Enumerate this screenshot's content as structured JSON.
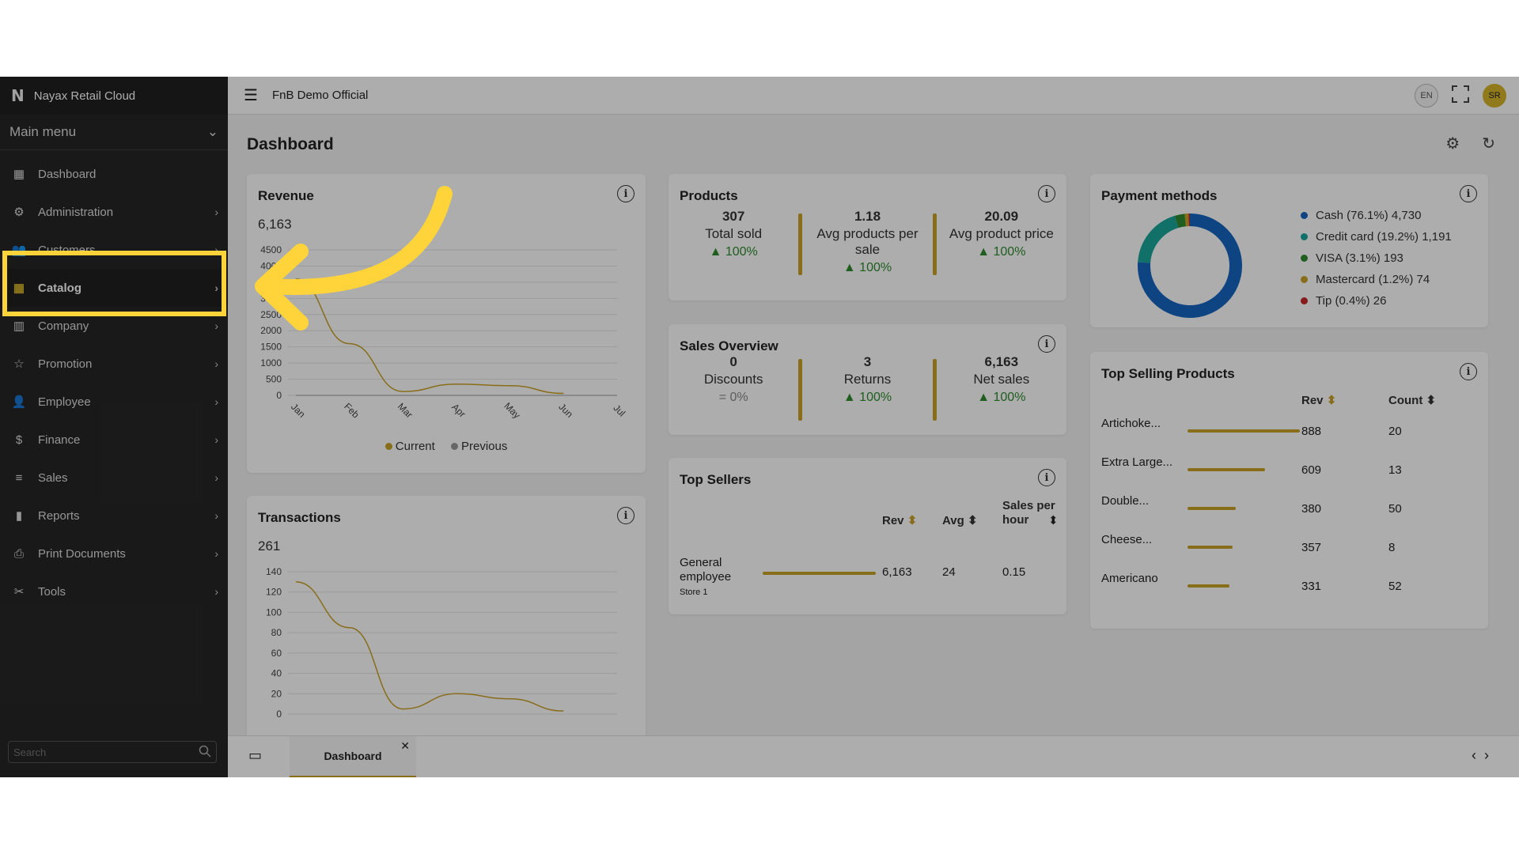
{
  "sidebar": {
    "brand": "Nayax Retail Cloud",
    "main_menu": "Main menu",
    "items": [
      {
        "label": "Dashboard",
        "icon": "dashboard-icon"
      },
      {
        "label": "Administration",
        "icon": "administration-icon"
      },
      {
        "label": "Customers",
        "icon": "customers-icon"
      },
      {
        "label": "Catalog",
        "icon": "catalog-icon"
      },
      {
        "label": "Company",
        "icon": "company-icon"
      },
      {
        "label": "Promotion",
        "icon": "promotion-icon"
      },
      {
        "label": "Employee",
        "icon": "employee-icon"
      },
      {
        "label": "Finance",
        "icon": "finance-icon"
      },
      {
        "label": "Sales",
        "icon": "sales-icon"
      },
      {
        "label": "Reports",
        "icon": "reports-icon"
      },
      {
        "label": "Print Documents",
        "icon": "print-icon"
      },
      {
        "label": "Tools",
        "icon": "tools-icon"
      }
    ],
    "search_placeholder": "Search"
  },
  "header": {
    "title": "FnB Demo Official",
    "lang": "EN",
    "user_initials": "SR"
  },
  "page": {
    "title": "Dashboard"
  },
  "revenue": {
    "title": "Revenue",
    "total": "6,163",
    "legend_current": "Current",
    "legend_previous": "Previous"
  },
  "products": {
    "title": "Products",
    "stats": [
      {
        "value": "307",
        "label": "Total sold",
        "pct": "▲ 100%"
      },
      {
        "value": "1.18",
        "label": "Avg products per sale",
        "pct": "▲ 100%"
      },
      {
        "value": "20.09",
        "label": "Avg product price",
        "pct": "▲ 100%"
      }
    ]
  },
  "payment": {
    "title": "Payment methods",
    "items": [
      {
        "label": "Cash (76.1%) 4,730",
        "color": "#1565c0"
      },
      {
        "label": "Credit card (19.2%) 1,191",
        "color": "#1aa59a"
      },
      {
        "label": "VISA (3.1%) 193",
        "color": "#2e8b2e"
      },
      {
        "label": "Mastercard (1.2%) 74",
        "color": "#c9a227"
      },
      {
        "label": "Tip (0.4%) 26",
        "color": "#c62828"
      }
    ]
  },
  "sales_overview": {
    "title": "Sales Overview",
    "stats": [
      {
        "value": "0",
        "label": "Discounts",
        "pct": "= 0%"
      },
      {
        "value": "3",
        "label": "Returns",
        "pct": "▲ 100%"
      },
      {
        "value": "6,163",
        "label": "Net sales",
        "pct": "▲ 100%"
      }
    ]
  },
  "top_sellers": {
    "title": "Top Sellers",
    "col_rev": "Rev",
    "col_avg": "Avg",
    "col_sph": "Sales per hour",
    "row": {
      "name": "General employee",
      "store": "Store 1",
      "rev": "6,163",
      "avg": "24",
      "sph": "0.15"
    }
  },
  "top_products": {
    "title": "Top Selling Products",
    "col_rev": "Rev",
    "col_count": "Count",
    "rows": [
      {
        "name": "Artichoke...",
        "rev": "888",
        "count": "20",
        "share": 1.0
      },
      {
        "name": "Extra Large...",
        "rev": "609",
        "count": "13",
        "share": 0.69
      },
      {
        "name": "Double...",
        "rev": "380",
        "count": "50",
        "share": 0.43
      },
      {
        "name": "Cheese...",
        "rev": "357",
        "count": "8",
        "share": 0.4
      },
      {
        "name": "Americano",
        "rev": "331",
        "count": "52",
        "share": 0.37
      }
    ]
  },
  "transactions": {
    "title": "Transactions",
    "total": "261"
  },
  "tabs": {
    "active": "Dashboard"
  },
  "chart_data": [
    {
      "type": "line",
      "title": "Revenue",
      "categories": [
        "Jan",
        "Feb",
        "Mar",
        "Apr",
        "May",
        "Jun",
        "Jul"
      ],
      "yticks": [
        0,
        500,
        1000,
        1500,
        2000,
        2500,
        3000,
        3500,
        4000,
        4500
      ],
      "ylim": [
        0,
        4500
      ],
      "series": [
        {
          "name": "Current",
          "values": [
            3600,
            1600,
            120,
            350,
            300,
            60,
            null
          ]
        },
        {
          "name": "Previous",
          "values": [
            0,
            0,
            0,
            0,
            0,
            0,
            0
          ]
        }
      ]
    },
    {
      "type": "line",
      "title": "Transactions",
      "yticks": [
        0,
        20,
        40,
        60,
        80,
        100,
        120,
        140
      ],
      "ylim": [
        0,
        140
      ],
      "series": [
        {
          "name": "Current",
          "values": [
            130,
            85,
            5,
            20,
            15,
            3
          ]
        }
      ]
    },
    {
      "type": "pie",
      "title": "Payment methods",
      "categories": [
        "Cash",
        "Credit card",
        "VISA",
        "Mastercard",
        "Tip"
      ],
      "values": [
        76.1,
        19.2,
        3.1,
        1.2,
        0.4
      ]
    }
  ]
}
